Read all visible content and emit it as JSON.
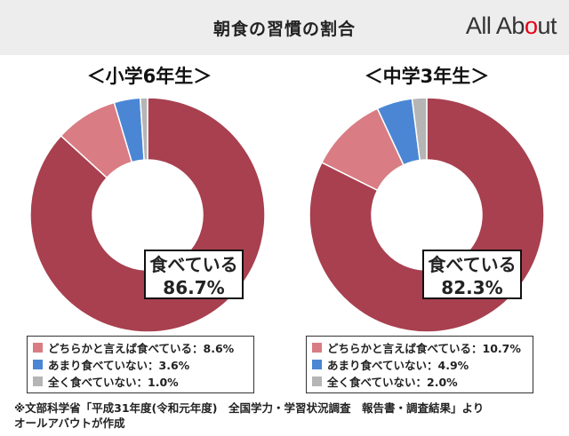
{
  "header": {
    "title": "朝食の習慣の割合",
    "logo_text": "All Ab",
    "logo_text_end": "ut",
    "logo_dot": "o"
  },
  "colors": {
    "header_bg": "#ededed",
    "eating": "#a8404f",
    "mostly_eating": "#d97c83",
    "rarely_eating": "#4a86d4",
    "never_eating": "#b5b5b5",
    "logo_accent": "#e60012"
  },
  "chart_data": [
    {
      "type": "pie",
      "title": "＜小学6年生＞",
      "donut": true,
      "slices": [
        {
          "label": "食べている",
          "value": 86.7,
          "color": "#a8404f"
        },
        {
          "label": "どちらかと言えば食べている",
          "value": 8.6,
          "color": "#d97c83"
        },
        {
          "label": "あまり食べていない",
          "value": 3.6,
          "color": "#4a86d4"
        },
        {
          "label": "全く食べていない",
          "value": 1.0,
          "color": "#b5b5b5"
        }
      ],
      "callout": {
        "label": "食べている",
        "value": "86.7%"
      },
      "legend": [
        {
          "text": "どちらかと言えば食べている：8.6%",
          "color": "#d97c83"
        },
        {
          "text": "あまり食べていない：3.6%",
          "color": "#4a86d4"
        },
        {
          "text": "全く食べていない：1.0%",
          "color": "#b5b5b5"
        }
      ]
    },
    {
      "type": "pie",
      "title": "＜中学3年生＞",
      "donut": true,
      "slices": [
        {
          "label": "食べている",
          "value": 82.3,
          "color": "#a8404f"
        },
        {
          "label": "どちらかと言えば食べている",
          "value": 10.7,
          "color": "#d97c83"
        },
        {
          "label": "あまり食べていない",
          "value": 4.9,
          "color": "#4a86d4"
        },
        {
          "label": "全く食べていない",
          "value": 2.0,
          "color": "#b5b5b5"
        }
      ],
      "callout": {
        "label": "食べている",
        "value": "82.3%"
      },
      "legend": [
        {
          "text": "どちらかと言えば食べている：10.7%",
          "color": "#d97c83"
        },
        {
          "text": "あまり食べていない：4.9%",
          "color": "#4a86d4"
        },
        {
          "text": "全く食べていない：2.0%",
          "color": "#b5b5b5"
        }
      ]
    }
  ],
  "footnote": {
    "line1": "※文部科学省「平成31年度(令和元年度)　全国学力・学習状況調査　報告書・調査結果」より",
    "line2": "オールアバウトが作成"
  }
}
